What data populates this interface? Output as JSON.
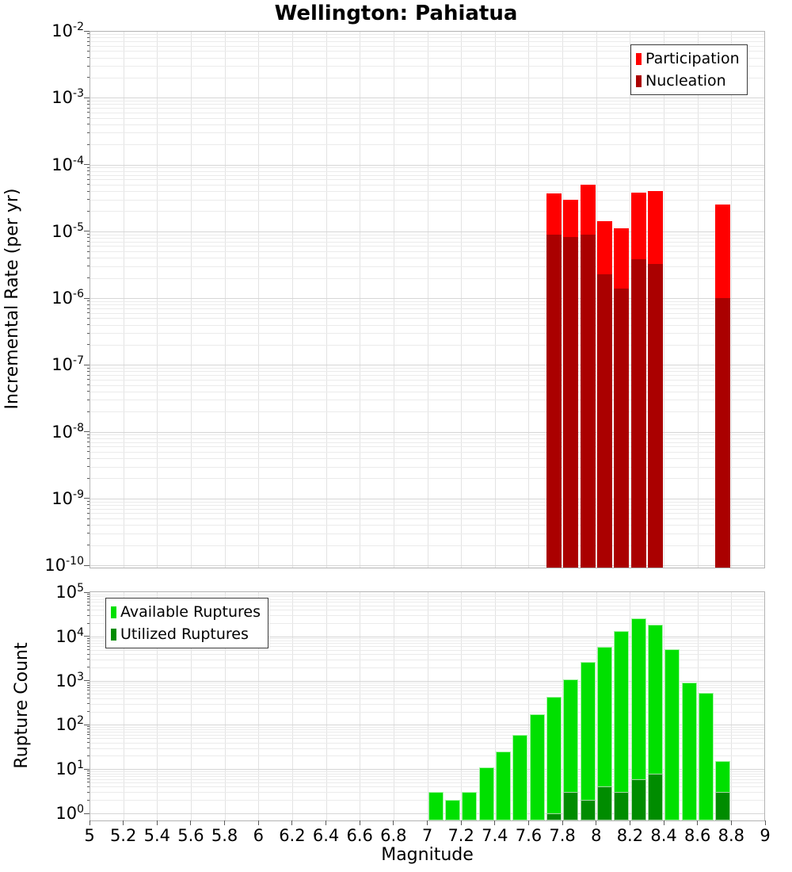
{
  "title": "Wellington: Pahiatua",
  "colors": {
    "participation": "#ff0000",
    "nucleation": "#aa0000",
    "available": "#00e000",
    "utilized": "#008c00",
    "grid_major": "#d6d6d6",
    "grid_minor": "#ebebeb",
    "plot_border": "#b3b3b3"
  },
  "chart_data": [
    {
      "type": "bar",
      "panel": "top",
      "title": "Wellington: Pahiatua",
      "xlabel": "",
      "ylabel": "Incremental Rate (per yr)",
      "yscale": "log",
      "xlim": [
        5,
        9
      ],
      "ylim": [
        1e-10,
        0.01
      ],
      "grid": true,
      "legend_position": "top-right",
      "bin_width": 0.1,
      "y_tick_labels": [
        "10^-2",
        "10^-3",
        "10^-4",
        "10^-5",
        "10^-6",
        "10^-7",
        "10^-8",
        "10^-9",
        "10^-10"
      ],
      "series": [
        {
          "name": "Participation",
          "color": "#ff0000",
          "x": [
            7.75,
            7.85,
            7.95,
            8.05,
            8.15,
            8.25,
            8.35,
            8.75
          ],
          "values": [
            3.7e-05,
            3e-05,
            5e-05,
            1.4e-05,
            1.1e-05,
            3.8e-05,
            4e-05,
            2.5e-05
          ]
        },
        {
          "name": "Nucleation",
          "color": "#aa0000",
          "x": [
            7.75,
            7.85,
            7.95,
            8.05,
            8.15,
            8.25,
            8.35,
            8.75
          ],
          "values": [
            8.9e-06,
            8.2e-06,
            8.9e-06,
            2.3e-06,
            1.4e-06,
            3.8e-06,
            3.2e-06,
            1e-06
          ]
        }
      ]
    },
    {
      "type": "bar",
      "panel": "bottom",
      "xlabel": "Magnitude",
      "ylabel": "Rupture Count",
      "yscale": "log",
      "xlim": [
        5,
        9
      ],
      "ylim": [
        1,
        100000.0
      ],
      "grid": true,
      "legend_position": "top-left",
      "bin_width": 0.1,
      "y_tick_labels": [
        "10^0",
        "10^1",
        "10^2",
        "10^3",
        "10^4",
        "10^5"
      ],
      "x_tick_labels": [
        "5",
        "5.2",
        "5.4",
        "5.6",
        "5.8",
        "6",
        "6.2",
        "6.4",
        "6.6",
        "6.8",
        "7",
        "7.2",
        "7.4",
        "7.6",
        "7.8",
        "8",
        "8.2",
        "8.4",
        "8.6",
        "8.8",
        "9"
      ],
      "series": [
        {
          "name": "Available Ruptures",
          "color": "#00e000",
          "x": [
            7.05,
            7.15,
            7.25,
            7.35,
            7.45,
            7.55,
            7.65,
            7.75,
            7.85,
            7.95,
            8.05,
            8.15,
            8.25,
            8.35,
            8.45,
            8.55,
            8.65,
            8.75
          ],
          "values": [
            3,
            2,
            3,
            11,
            25,
            60,
            175,
            430,
            1080,
            2650,
            5800,
            13000,
            26000,
            18500,
            5200,
            900,
            540,
            15
          ]
        },
        {
          "name": "Utilized Ruptures",
          "color": "#008c00",
          "x": [
            7.75,
            7.85,
            7.95,
            8.05,
            8.15,
            8.25,
            8.35,
            8.75
          ],
          "values": [
            1,
            3,
            2,
            4,
            3,
            6,
            8,
            3
          ]
        }
      ]
    }
  ]
}
